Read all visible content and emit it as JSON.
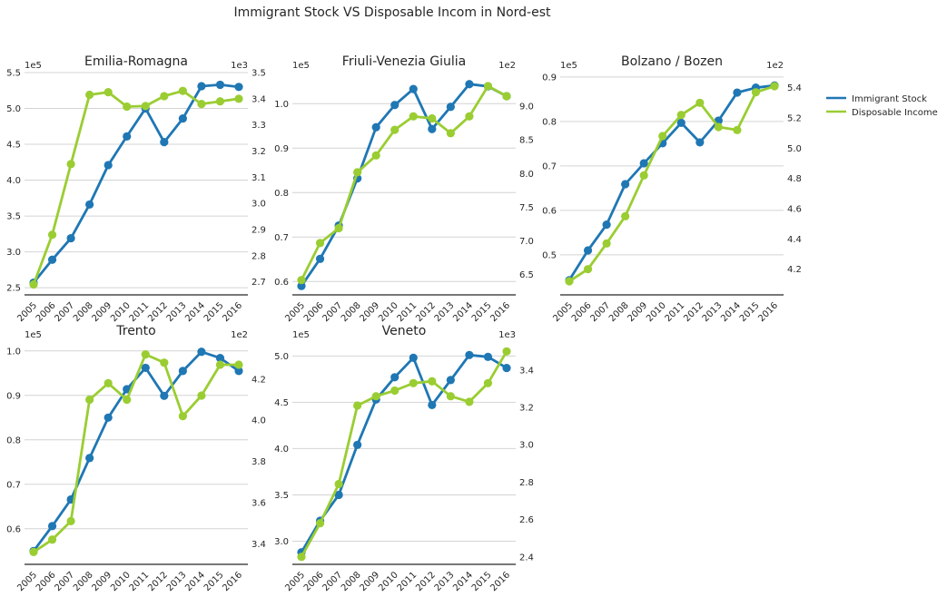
{
  "figure": {
    "title": "Immigrant Stock VS Disposable Incom in Nord-est",
    "legend": {
      "placement": "right",
      "items": [
        {
          "label": "Immigrant Stock",
          "color": "#1f77b4"
        },
        {
          "label": "Disposable Income",
          "color": "#9acd32"
        }
      ]
    }
  },
  "chart_data": [
    {
      "type": "line",
      "title": "Emilia-Romagna",
      "x": [
        "2005",
        "2006",
        "2007",
        "2008",
        "2009",
        "2010",
        "2011",
        "2012",
        "2013",
        "2014",
        "2015",
        "2016"
      ],
      "grid": true,
      "series": [
        {
          "name": "Immigrant Stock",
          "axis": "left",
          "color": "#1f77b4",
          "values": [
            2.57,
            2.89,
            3.19,
            3.66,
            4.21,
            4.61,
            5.0,
            4.53,
            4.86,
            5.31,
            5.33,
            5.3
          ]
        },
        {
          "name": "Disposable Income",
          "axis": "right",
          "color": "#9acd32",
          "values": [
            2.69,
            2.88,
            3.15,
            3.415,
            3.425,
            3.37,
            3.372,
            3.41,
            3.43,
            3.38,
            3.39,
            3.4
          ]
        }
      ],
      "left_axis": {
        "scale_label": "1e5",
        "ylim": [
          2.4,
          5.5
        ],
        "ticks": [
          "2.5",
          "3.0",
          "3.5",
          "4.0",
          "4.5",
          "5.0",
          "5.5"
        ]
      },
      "right_axis": {
        "scale_label": "1e3",
        "ylim": [
          2.65,
          3.5
        ],
        "ticks": [
          "2.7",
          "2.8",
          "2.9",
          "3.0",
          "3.1",
          "3.2",
          "3.3",
          "3.4",
          "3.5"
        ]
      }
    },
    {
      "type": "line",
      "title": "Friuli-Venezia Giulia",
      "x": [
        "2005",
        "2006",
        "2007",
        "2008",
        "2009",
        "2010",
        "2011",
        "2012",
        "2013",
        "2014",
        "2015",
        "2016"
      ],
      "grid": true,
      "series": [
        {
          "name": "Immigrant Stock",
          "axis": "left",
          "color": "#1f77b4",
          "values": [
            0.59,
            0.651,
            0.726,
            0.832,
            0.947,
            0.997,
            1.033,
            0.943,
            0.993,
            1.044,
            1.039,
            1.017
          ]
        },
        {
          "name": "Disposable Income",
          "axis": "right",
          "color": "#9acd32",
          "values": [
            6.42,
            6.97,
            7.19,
            8.02,
            8.27,
            8.65,
            8.85,
            8.82,
            8.6,
            8.85,
            9.3,
            9.15
          ]
        }
      ],
      "left_axis": {
        "scale_label": "1e5",
        "ylim": [
          0.57,
          1.07
        ],
        "ticks": [
          "0.6",
          "0.7",
          "0.8",
          "0.9",
          "1.0"
        ]
      },
      "right_axis": {
        "scale_label": "1e2",
        "ylim": [
          6.2,
          9.5
        ],
        "ticks": [
          "6.5",
          "7.0",
          "7.5",
          "8.0",
          "8.5",
          "9.0"
        ]
      }
    },
    {
      "type": "line",
      "title": "Bolzano / Bozen",
      "x": [
        "2005",
        "2006",
        "2007",
        "2008",
        "2009",
        "2010",
        "2011",
        "2012",
        "2013",
        "2014",
        "2015",
        "2016"
      ],
      "grid": true,
      "series": [
        {
          "name": "Immigrant Stock",
          "axis": "left",
          "color": "#1f77b4",
          "values": [
            0.443,
            0.51,
            0.568,
            0.659,
            0.706,
            0.751,
            0.797,
            0.753,
            0.802,
            0.865,
            0.876,
            0.881
          ]
        },
        {
          "name": "Disposable Income",
          "axis": "right",
          "color": "#9acd32",
          "values": [
            4.12,
            4.2,
            4.37,
            4.55,
            4.82,
            5.08,
            5.22,
            5.3,
            5.14,
            5.12,
            5.37,
            5.41
          ]
        }
      ],
      "left_axis": {
        "scale_label": "1e5",
        "ylim": [
          0.41,
          0.91
        ],
        "ticks": [
          "0.5",
          "0.6",
          "0.7",
          "0.8",
          "0.9"
        ]
      },
      "right_axis": {
        "scale_label": "1e2",
        "ylim": [
          4.03,
          5.5
        ],
        "ticks": [
          "4.2",
          "4.4",
          "4.6",
          "4.8",
          "5.0",
          "5.2",
          "5.4"
        ]
      }
    },
    {
      "type": "line",
      "title": "Trento",
      "x": [
        "2005",
        "2006",
        "2007",
        "2008",
        "2009",
        "2010",
        "2011",
        "2012",
        "2013",
        "2014",
        "2015",
        "2016"
      ],
      "grid": true,
      "series": [
        {
          "name": "Immigrant Stock",
          "axis": "left",
          "color": "#1f77b4",
          "values": [
            0.55,
            0.606,
            0.666,
            0.759,
            0.85,
            0.914,
            0.962,
            0.899,
            0.955,
            0.998,
            0.984,
            0.955
          ]
        },
        {
          "name": "Disposable Income",
          "axis": "right",
          "color": "#9acd32",
          "values": [
            3.36,
            3.42,
            3.51,
            4.1,
            4.18,
            4.1,
            4.32,
            4.28,
            4.02,
            4.12,
            4.27,
            4.27
          ]
        }
      ],
      "left_axis": {
        "scale_label": "1e5",
        "ylim": [
          0.52,
          1.02
        ],
        "ticks": [
          "0.6",
          "0.7",
          "0.8",
          "0.9",
          "1.0"
        ]
      },
      "right_axis": {
        "scale_label": "1e2",
        "ylim": [
          3.3,
          4.38
        ],
        "ticks": [
          "3.4",
          "3.6",
          "3.8",
          "4.0",
          "4.2"
        ]
      }
    },
    {
      "type": "line",
      "title": "Veneto",
      "x": [
        "2005",
        "2006",
        "2007",
        "2008",
        "2009",
        "2010",
        "2011",
        "2012",
        "2013",
        "2014",
        "2015",
        "2016"
      ],
      "grid": true,
      "series": [
        {
          "name": "Immigrant Stock",
          "axis": "left",
          "color": "#1f77b4",
          "values": [
            2.88,
            3.22,
            3.5,
            4.04,
            4.53,
            4.77,
            4.98,
            4.47,
            4.74,
            5.01,
            4.99,
            4.87
          ]
        },
        {
          "name": "Disposable Income",
          "axis": "right",
          "color": "#9acd32",
          "values": [
            2.4,
            2.58,
            2.79,
            3.21,
            3.26,
            3.29,
            3.33,
            3.34,
            3.26,
            3.23,
            3.33,
            3.5
          ]
        }
      ],
      "left_axis": {
        "scale_label": "1e5",
        "ylim": [
          2.75,
          5.15
        ],
        "ticks": [
          "3.0",
          "3.5",
          "4.0",
          "4.5",
          "5.0"
        ]
      },
      "right_axis": {
        "scale_label": "1e3",
        "ylim": [
          2.36,
          3.55
        ],
        "ticks": [
          "2.4",
          "2.6",
          "2.8",
          "3.0",
          "3.2",
          "3.4"
        ]
      }
    }
  ]
}
